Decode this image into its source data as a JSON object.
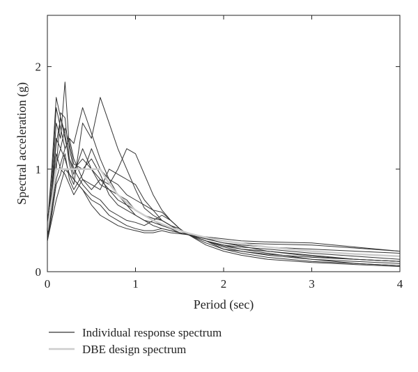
{
  "chart_data": {
    "type": "line",
    "title": "",
    "xlabel": "Period (sec)",
    "ylabel": "Spectral acceleration (g)",
    "xlim": [
      0,
      4
    ],
    "ylim": [
      0,
      2.5
    ],
    "xticks": [
      0,
      1,
      2,
      3,
      4
    ],
    "yticks": [
      0,
      1,
      2
    ],
    "xtick_labels": [
      "0",
      "1",
      "2",
      "3",
      "4"
    ],
    "ytick_labels": [
      "0",
      "1",
      "2"
    ],
    "grid": false,
    "legend": {
      "placement": "below",
      "entries": [
        {
          "label": "Individual response spectrum",
          "color": "#333333"
        },
        {
          "label": "DBE design spectrum",
          "color": "#cccccc"
        }
      ]
    },
    "x": [
      0,
      0.05,
      0.1,
      0.15,
      0.2,
      0.25,
      0.3,
      0.4,
      0.5,
      0.6,
      0.7,
      0.8,
      0.9,
      1.0,
      1.1,
      1.2,
      1.3,
      1.4,
      1.5,
      1.6,
      1.8,
      2.0,
      2.2,
      2.5,
      3.0,
      3.5,
      4.0
    ],
    "series": [
      {
        "values": [
          0.35,
          0.8,
          1.45,
          1.3,
          1.85,
          1.2,
          1.0,
          0.85,
          0.75,
          0.7,
          0.6,
          0.55,
          0.5,
          0.48,
          0.45,
          0.5,
          0.55,
          0.5,
          0.42,
          0.36,
          0.3,
          0.26,
          0.22,
          0.18,
          0.12,
          0.08,
          0.06
        ]
      },
      {
        "values": [
          0.3,
          0.6,
          1.0,
          1.55,
          1.5,
          1.1,
          0.95,
          1.2,
          1.0,
          0.9,
          0.8,
          0.75,
          0.7,
          0.6,
          0.55,
          0.52,
          0.5,
          0.45,
          0.4,
          0.36,
          0.3,
          0.25,
          0.22,
          0.2,
          0.16,
          0.12,
          0.1
        ]
      },
      {
        "values": [
          0.4,
          0.7,
          1.3,
          1.2,
          1.1,
          0.95,
          0.85,
          1.45,
          1.3,
          1.7,
          1.45,
          1.2,
          1.0,
          0.8,
          0.62,
          0.55,
          0.5,
          0.45,
          0.4,
          0.36,
          0.32,
          0.28,
          0.25,
          0.2,
          0.15,
          0.12,
          0.1
        ]
      },
      {
        "values": [
          0.45,
          0.9,
          1.6,
          1.4,
          1.2,
          1.3,
          1.1,
          0.9,
          0.8,
          0.9,
          0.85,
          1.0,
          1.2,
          1.15,
          0.95,
          0.75,
          0.6,
          0.5,
          0.42,
          0.36,
          0.32,
          0.28,
          0.26,
          0.24,
          0.22,
          0.2,
          0.18
        ]
      },
      {
        "values": [
          0.3,
          0.55,
          0.85,
          0.95,
          1.15,
          0.9,
          0.8,
          0.95,
          1.2,
          1.0,
          0.9,
          0.85,
          0.75,
          0.7,
          0.65,
          0.6,
          0.58,
          0.5,
          0.42,
          0.36,
          0.3,
          0.22,
          0.18,
          0.14,
          0.1,
          0.08,
          0.06
        ]
      },
      {
        "values": [
          0.5,
          0.8,
          1.25,
          1.5,
          1.35,
          1.05,
          0.9,
          0.8,
          0.7,
          0.65,
          0.55,
          0.5,
          0.45,
          0.42,
          0.4,
          0.4,
          0.42,
          0.4,
          0.38,
          0.36,
          0.32,
          0.3,
          0.28,
          0.27,
          0.26,
          0.23,
          0.2
        ]
      },
      {
        "values": [
          0.35,
          0.65,
          1.05,
          1.2,
          1.4,
          1.25,
          1.05,
          1.0,
          1.1,
          0.95,
          0.75,
          0.65,
          0.6,
          0.55,
          0.5,
          0.48,
          0.45,
          0.42,
          0.38,
          0.36,
          0.3,
          0.24,
          0.2,
          0.16,
          0.12,
          0.1,
          0.08
        ]
      },
      {
        "values": [
          0.4,
          0.75,
          1.15,
          1.0,
          0.95,
          0.85,
          0.75,
          0.9,
          0.85,
          0.8,
          1.0,
          0.95,
          0.9,
          0.85,
          0.7,
          0.6,
          0.5,
          0.45,
          0.42,
          0.36,
          0.28,
          0.22,
          0.2,
          0.17,
          0.14,
          0.12,
          0.1
        ]
      },
      {
        "values": [
          0.3,
          0.5,
          0.7,
          0.85,
          1.0,
          0.95,
          0.9,
          0.8,
          0.65,
          0.55,
          0.5,
          0.45,
          0.42,
          0.4,
          0.38,
          0.38,
          0.4,
          0.38,
          0.37,
          0.36,
          0.34,
          0.32,
          0.3,
          0.29,
          0.28,
          0.24,
          0.2
        ]
      },
      {
        "values": [
          0.45,
          1.0,
          1.7,
          1.5,
          1.3,
          1.1,
          1.0,
          1.1,
          1.0,
          0.85,
          0.8,
          0.7,
          0.65,
          0.55,
          0.5,
          0.45,
          0.42,
          0.4,
          0.38,
          0.36,
          0.26,
          0.2,
          0.16,
          0.12,
          0.09,
          0.07,
          0.05
        ]
      },
      {
        "values": [
          0.35,
          0.6,
          0.9,
          1.05,
          1.2,
          1.3,
          1.25,
          1.6,
          1.35,
          1.1,
          0.9,
          0.75,
          0.65,
          0.6,
          0.55,
          0.5,
          0.45,
          0.42,
          0.38,
          0.36,
          0.3,
          0.26,
          0.24,
          0.22,
          0.18,
          0.15,
          0.12
        ]
      }
    ],
    "design": {
      "name": "DBE design spectrum",
      "x": [
        0,
        0.1,
        0.2,
        0.6,
        0.7,
        0.8,
        1.0,
        1.2,
        1.4,
        1.6,
        1.8,
        2.0,
        2.5,
        3.0,
        3.5,
        4.0
      ],
      "values": [
        0.4,
        1.0,
        1.0,
        1.0,
        0.86,
        0.75,
        0.6,
        0.5,
        0.43,
        0.375,
        0.333,
        0.3,
        0.24,
        0.2,
        0.171,
        0.15
      ]
    }
  }
}
